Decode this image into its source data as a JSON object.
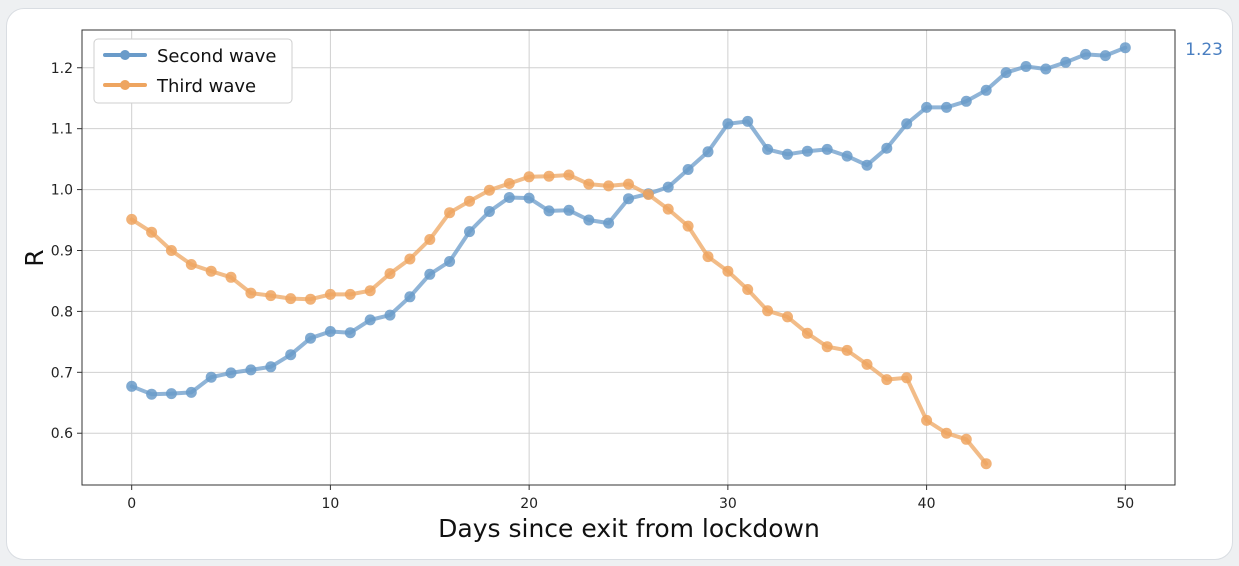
{
  "colors": {
    "second_wave": "#6a9bc9",
    "third_wave": "#eea560",
    "annotation": "#4a7fc1",
    "grid": "#d0d0d0"
  },
  "chart_data": {
    "type": "line",
    "title": "",
    "xlabel": "Days since exit from lockdown",
    "ylabel": "R",
    "xlim": [
      -2.5,
      52.5
    ],
    "ylim": [
      0.515,
      1.262
    ],
    "x_ticks": [
      0,
      10,
      20,
      30,
      40,
      50
    ],
    "y_ticks": [
      0.6,
      0.7,
      0.8,
      0.9,
      1.0,
      1.1,
      1.2
    ],
    "y_tick_labels": [
      "0.6",
      "0.7",
      "0.8",
      "0.9",
      "1.0",
      "1.1",
      "1.2"
    ],
    "grid": true,
    "legend_position": "top-left",
    "annotation": "1.23",
    "series": [
      {
        "name": "Second wave",
        "color": "#6a9bc9",
        "x": [
          0,
          1,
          2,
          3,
          4,
          5,
          6,
          7,
          8,
          9,
          10,
          11,
          12,
          13,
          14,
          15,
          16,
          17,
          18,
          19,
          20,
          21,
          22,
          23,
          24,
          25,
          26,
          27,
          28,
          29,
          30,
          31,
          32,
          33,
          34,
          35,
          36,
          37,
          38,
          39,
          40,
          41,
          42,
          43,
          44,
          45,
          46,
          47,
          48,
          49,
          50
        ],
        "values": [
          0.677,
          0.664,
          0.665,
          0.667,
          0.692,
          0.699,
          0.704,
          0.709,
          0.729,
          0.756,
          0.767,
          0.765,
          0.786,
          0.794,
          0.824,
          0.861,
          0.882,
          0.931,
          0.964,
          0.987,
          0.986,
          0.965,
          0.966,
          0.95,
          0.945,
          0.985,
          0.993,
          1.004,
          1.033,
          1.062,
          1.108,
          1.112,
          1.066,
          1.058,
          1.063,
          1.066,
          1.055,
          1.04,
          1.068,
          1.108,
          1.135,
          1.135,
          1.145,
          1.163,
          1.192,
          1.202,
          1.198,
          1.209,
          1.222,
          1.22,
          1.233
        ]
      },
      {
        "name": "Third wave",
        "color": "#eea560",
        "x": [
          0,
          1,
          2,
          3,
          4,
          5,
          6,
          7,
          8,
          9,
          10,
          11,
          12,
          13,
          14,
          15,
          16,
          17,
          18,
          19,
          20,
          21,
          22,
          23,
          24,
          25,
          26,
          27,
          28,
          29,
          30,
          31,
          32,
          33,
          34,
          35,
          36,
          37,
          38,
          39,
          40,
          41,
          42,
          43
        ],
        "values": [
          0.951,
          0.93,
          0.9,
          0.877,
          0.866,
          0.856,
          0.83,
          0.826,
          0.821,
          0.82,
          0.828,
          0.828,
          0.834,
          0.862,
          0.886,
          0.918,
          0.962,
          0.981,
          0.999,
          1.01,
          1.021,
          1.022,
          1.024,
          1.009,
          1.006,
          1.009,
          0.992,
          0.968,
          0.94,
          0.89,
          0.866,
          0.836,
          0.801,
          0.791,
          0.764,
          0.742,
          0.736,
          0.713,
          0.688,
          0.691,
          0.621,
          0.6,
          0.59,
          0.55
        ]
      }
    ]
  }
}
